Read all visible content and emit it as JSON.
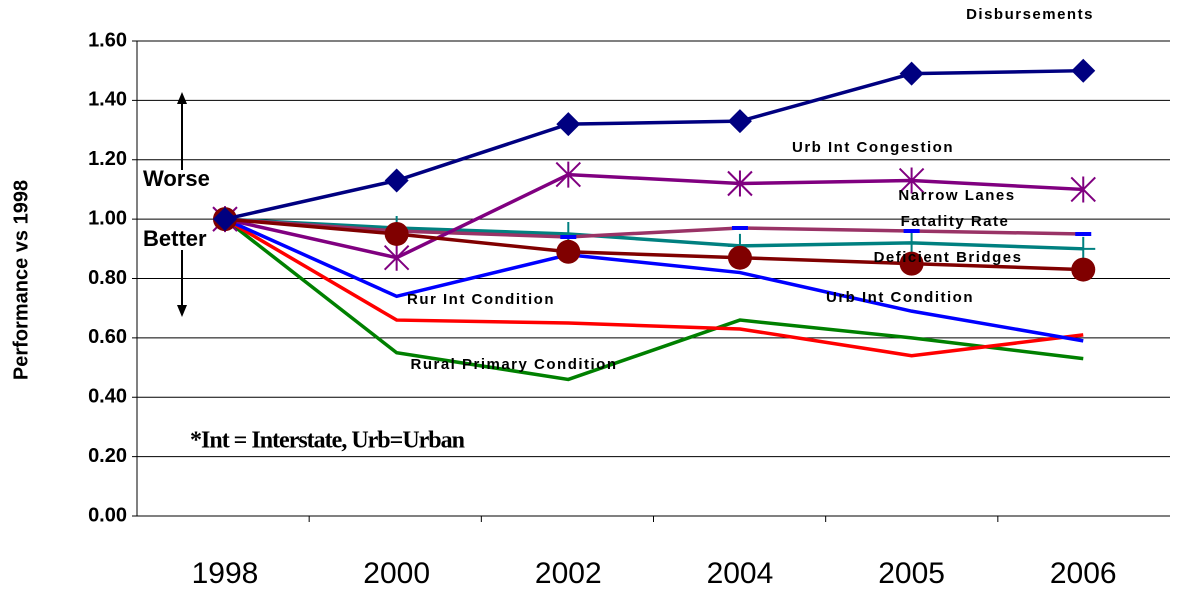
{
  "chart_data": {
    "type": "line",
    "y_label": "Performance vs 1998",
    "annotations": [
      "Worse",
      "Better",
      "*Int = Interstate, Urb=Urban"
    ],
    "categories": [
      "1998",
      "2000",
      "2002",
      "2004",
      "2005",
      "2006"
    ],
    "ylim": [
      0,
      1.6
    ],
    "yticks": [
      {
        "value": 0,
        "label": "0.00"
      },
      {
        "value": 0.2,
        "label": "0.20"
      },
      {
        "value": 0.4,
        "label": "0.40"
      },
      {
        "value": 0.6,
        "label": "0.60"
      },
      {
        "value": 0.8,
        "label": "0.80"
      },
      {
        "value": 1.0,
        "label": "1.00"
      },
      {
        "value": 1.2,
        "label": "1.20"
      },
      {
        "value": 1.4,
        "label": "1.40"
      },
      {
        "value": 1.6,
        "label": "1.60"
      }
    ],
    "grid": true,
    "series": [
      {
        "name": "Disbursements",
        "color": "#000080",
        "marker": "diamond",
        "marker_color": "#000080",
        "values": [
          1.0,
          1.13,
          1.32,
          1.33,
          1.49,
          1.5
        ]
      },
      {
        "name": "Urb Int Congestion",
        "color": "#800080",
        "marker": "asterisk",
        "marker_color": "#800080",
        "values": [
          1.0,
          0.87,
          1.15,
          1.12,
          1.13,
          1.1
        ]
      },
      {
        "name": "Narrow Lanes",
        "color": "#993366",
        "marker": "dash",
        "marker_color": "#0000ff",
        "values": [
          1.0,
          0.96,
          0.94,
          0.97,
          0.96,
          0.95
        ]
      },
      {
        "name": "Fatality Rate",
        "color": "#008080",
        "marker": "plus",
        "marker_color": "#008080",
        "values": [
          1.0,
          0.97,
          0.95,
          0.91,
          0.92,
          0.9
        ]
      },
      {
        "name": "Deficient Bridges",
        "color": "#800000",
        "marker": "circle",
        "marker_color": "#800000",
        "values": [
          1.0,
          0.95,
          0.89,
          0.87,
          0.85,
          0.83
        ]
      },
      {
        "name": "Urb Int Condition",
        "color": "#0000ff",
        "marker": "none",
        "marker_color": "#0000ff",
        "values": [
          1.0,
          0.74,
          0.88,
          0.82,
          0.69,
          0.59
        ]
      },
      {
        "name": "Rur Int Condition",
        "color": "#ff0000",
        "marker": "none",
        "marker_color": "#ff0000",
        "values": [
          1.0,
          0.66,
          0.65,
          0.63,
          0.54,
          0.61
        ]
      },
      {
        "name": "Rural Primary Condition",
        "color": "#008000",
        "marker": "none",
        "marker_color": "#008000",
        "values": [
          1.0,
          0.55,
          0.46,
          0.66,
          0.6,
          0.53
        ]
      }
    ]
  }
}
